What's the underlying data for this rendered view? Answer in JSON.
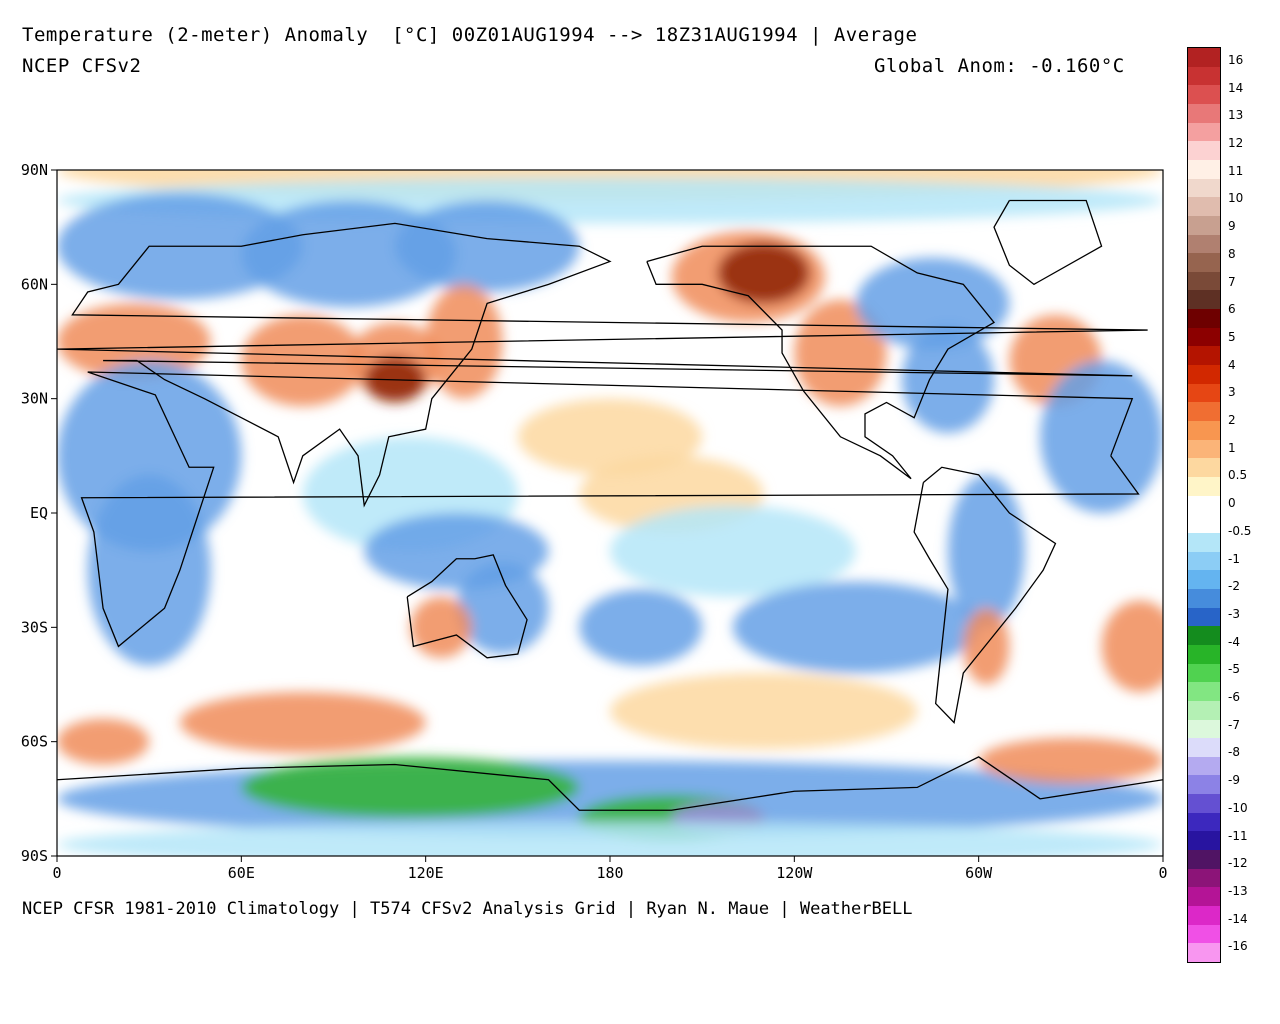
{
  "header": {
    "title": "Temperature (2-meter) Anomaly  [°C] 00Z01AUG1994 --> 18Z31AUG1994 | Average",
    "model": "NCEP CFSv2",
    "global_anomaly": "Global Anom: -0.160°C"
  },
  "footer": "NCEP CFSR 1981-2010 Climatology | T574 CFSv2 Analysis Grid | Ryan N. Maue | WeatherBELL",
  "axes": {
    "lat_labels": [
      "90N",
      "60N",
      "30N",
      "EQ",
      "30S",
      "60S",
      "90S"
    ],
    "lon_labels": [
      "0",
      "60E",
      "120E",
      "180",
      "120W",
      "60W",
      "0"
    ]
  },
  "colorbar": {
    "labels": [
      "16",
      "14",
      "13",
      "12",
      "11",
      "10",
      "9",
      "8",
      "7",
      "6",
      "5",
      "4",
      "3",
      "2",
      "1",
      "0.5",
      "0",
      "-0.5",
      "-1",
      "-2",
      "-3",
      "-4",
      "-5",
      "-6",
      "-7",
      "-8",
      "-9",
      "-10",
      "-11",
      "-12",
      "-13",
      "-14",
      "-16"
    ],
    "colors": [
      "#b22222",
      "#c83232",
      "#dc5050",
      "#e87878",
      "#f4a0a0",
      "#fcd2d2",
      "#fff0e6",
      "#f0d8cc",
      "#e0bcae",
      "#c8a090",
      "#b08070",
      "#96644f",
      "#7a4a38",
      "#5e3024",
      "#6e0000",
      "#8c0000",
      "#b41400",
      "#d22800",
      "#e64614",
      "#f06e32",
      "#f89650",
      "#fbb478",
      "#fdd8a0",
      "#fff5c8",
      "#ffffff",
      "#ffffff",
      "#b4e6f8",
      "#8ccdf5",
      "#64b4f0",
      "#468cdc",
      "#2864c8",
      "#148c1e",
      "#28b428",
      "#50d250",
      "#82e682",
      "#b4f0b4",
      "#dcf8dc",
      "#dcdcfa",
      "#b4aaf0",
      "#8c82e6",
      "#6450d2",
      "#3c28be",
      "#2814a0",
      "#501464",
      "#8c1478",
      "#b41496",
      "#dc28c8",
      "#f050e6",
      "#f896f0"
    ]
  },
  "map": {
    "legend_colors": {
      "strong_warm": "#8c1e00",
      "warm": "#f08c5a",
      "mild_warm": "#fdd8a0",
      "neutral": "#ffffff",
      "mild_cool": "#b4e6f8",
      "cool": "#64a0e6",
      "cold": "#2864c8",
      "very_cold": "#32b432",
      "extreme_cold": "#a08ce6"
    }
  }
}
